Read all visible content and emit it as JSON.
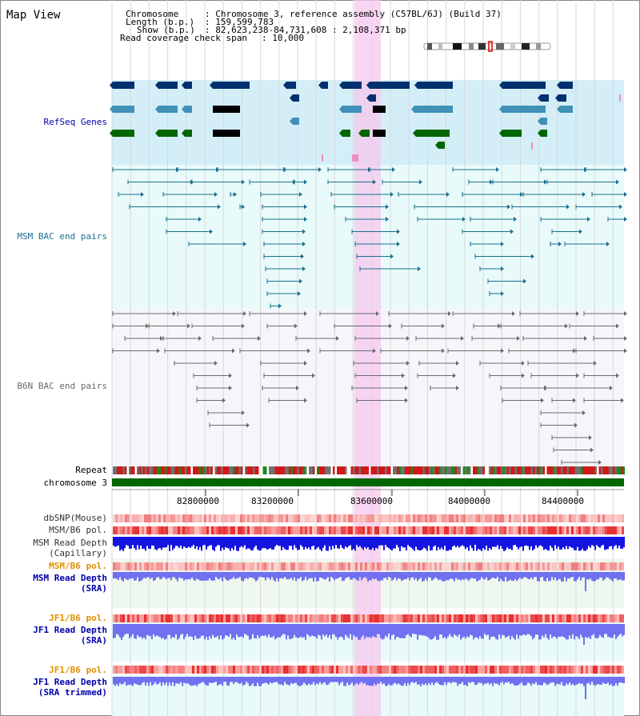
{
  "header": {
    "view_title": "Map View",
    "chromosome_label": "Chromosome",
    "chromosome_value": ": Chromosome 3, reference assembly (C57BL/6J) (Build 37)",
    "length_label": "Length (b.p.)",
    "length_value": ": 159,599,783",
    "show_label": "Show (b.p.)",
    "show_value": ": 82,623,238-84,731,608 : 2,108,371 bp",
    "coverage_label": "Read coverage check span",
    "coverage_value": ": 10,000"
  },
  "tracks": {
    "refseq": "RefSeq Genes",
    "msm_bac": "MSM BAC end pairs",
    "b6n_bac": "B6N BAC end pairs",
    "repeat": "Repeat",
    "chromosome": "chromosome 3",
    "dbsnp": "dbSNP(Mouse)",
    "msm_b6_pol_1": "MSM/B6 pol.",
    "msm_read_depth_cap_1": "MSM Read Depth",
    "msm_read_depth_cap_2": "(Capillary)",
    "msm_b6_pol_2": "MSM/B6 pol.",
    "msm_read_depth_sra_1": "MSM Read Depth",
    "msm_read_depth_sra_2": "(SRA)",
    "jf1_b6_pol_1": "JF1/B6 pol.",
    "jf1_read_depth_sra_1": "JF1 Read Depth",
    "jf1_read_depth_sra_2": "(SRA)",
    "jf1_b6_pol_2": "JF1/B6 pol.",
    "jf1_read_depth_trim_1": "JF1 Read Depth",
    "jf1_read_depth_trim_2": "(SRA trimmed)"
  },
  "ruler": {
    "ticks": [
      "82800000",
      "83200000",
      "83600000",
      "84000000",
      "84400000"
    ]
  },
  "colors": {
    "refseq_bg": "#d4eef8",
    "bac_bg": "#e8fafa",
    "highlight": "#f5c8ee",
    "gene_dark": "#003070",
    "gene_mid": "#4090b8",
    "gene_green": "#006600",
    "msm_pair": "#1a6f8f",
    "b6n_pair": "#6b6b6b",
    "chromosome_bar": "#006600",
    "depth_dark": "#1414e0",
    "depth_light": "#7070f0",
    "label_blue": "#0000aa",
    "label_orange": "#e09000"
  }
}
